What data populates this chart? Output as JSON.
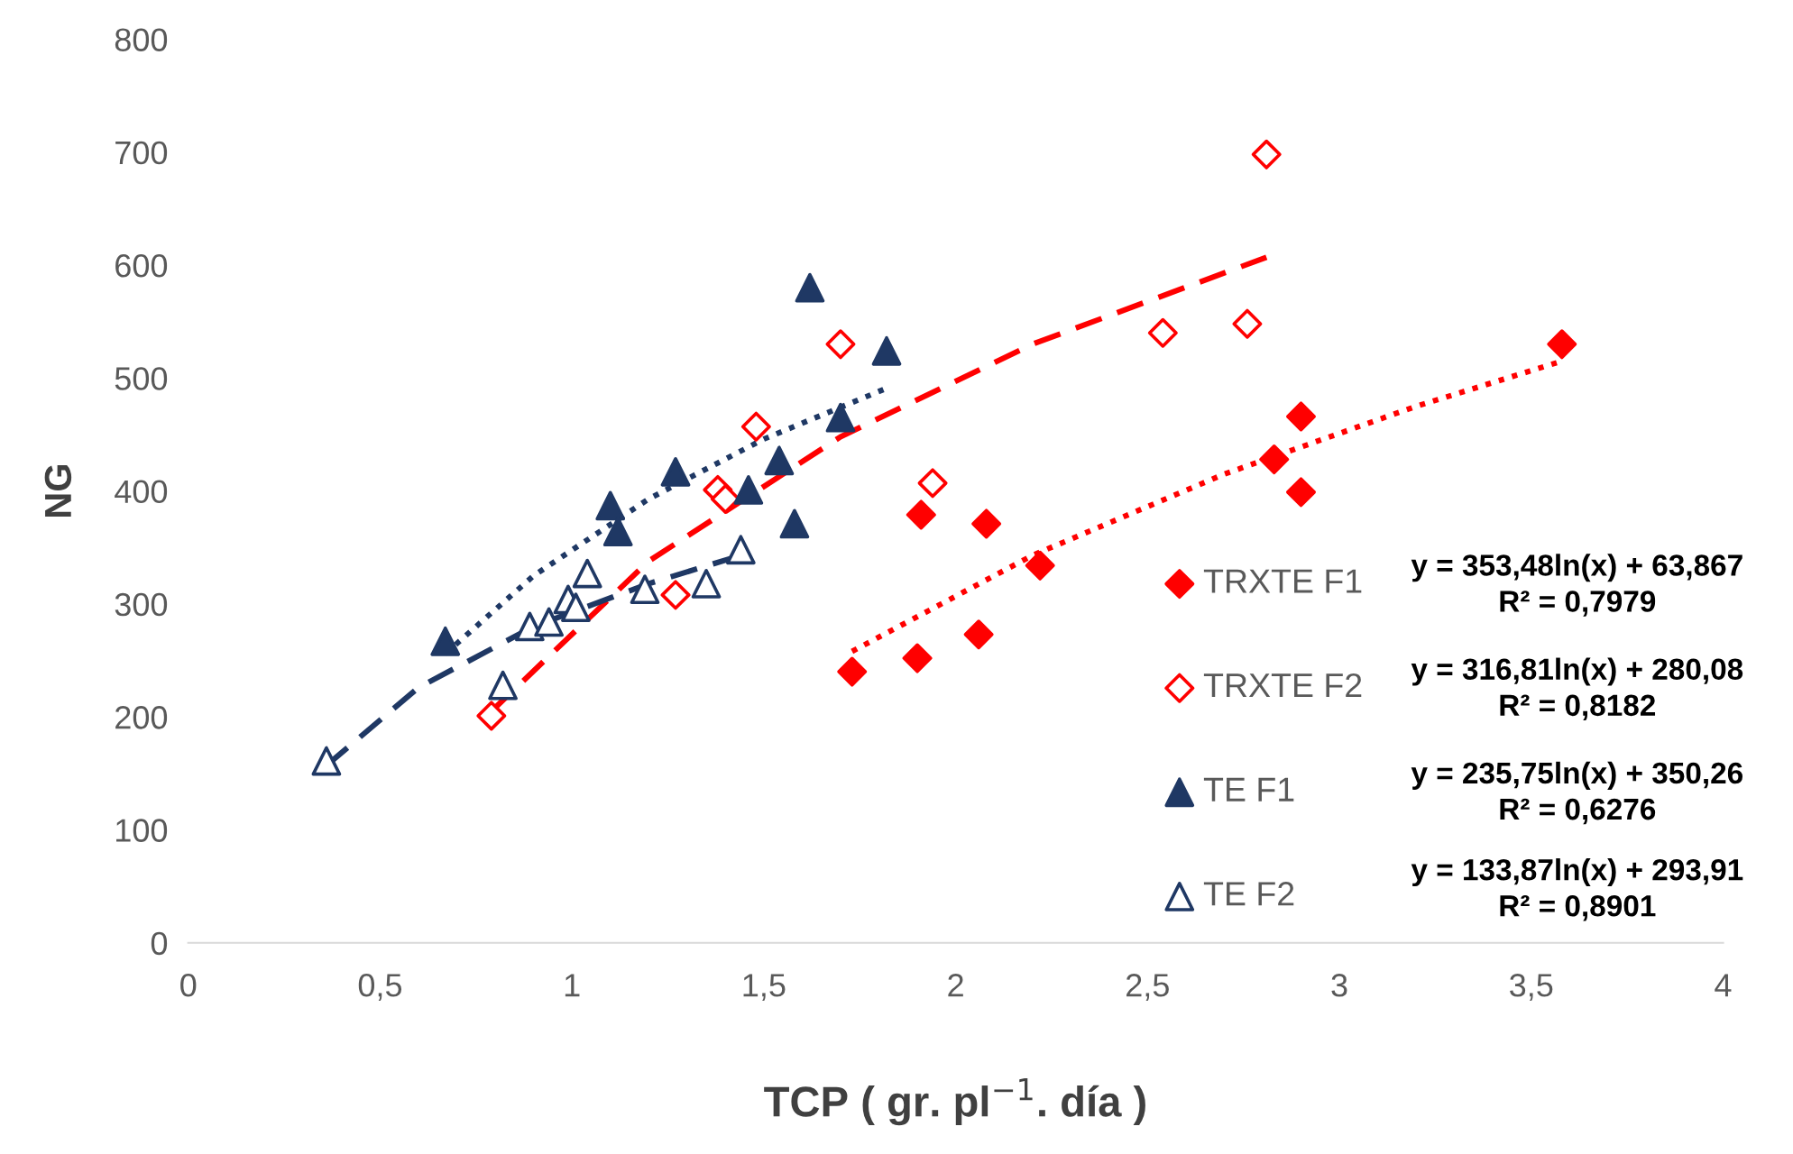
{
  "chart_data": {
    "type": "scatter",
    "xlabel": "TCP ( gr. pl$^{−1}$. día )",
    "ylabel": "NG",
    "xlim": [
      0,
      4
    ],
    "ylim": [
      0,
      800
    ],
    "xticks": [
      0,
      {
        "value": 0.5,
        "label": "0,5"
      },
      1,
      {
        "value": 1.5,
        "label": "1,5"
      },
      2,
      {
        "value": 2.5,
        "label": "2,5"
      },
      3,
      {
        "value": 3.5,
        "label": "3,5"
      },
      4
    ],
    "yticks": [
      0,
      100,
      200,
      300,
      400,
      500,
      600,
      700,
      800
    ],
    "grid": false,
    "legend": "right",
    "series": [
      {
        "name": "TRXTE F1",
        "marker": "diamond",
        "color": "#ff0000",
        "x": [
          1.73,
          1.9,
          2.06,
          1.91,
          2.08,
          2.22,
          2.83,
          2.9,
          2.9,
          3.58
        ],
        "values": [
          240,
          252,
          273,
          379,
          371,
          334,
          428,
          466,
          399,
          530
        ]
      },
      {
        "name": "TRXTE F2",
        "marker": "diamond",
        "color": "#ff0000",
        "x": [
          0.79,
          1.27,
          1.38,
          1.4,
          1.48,
          1.7,
          1.94,
          2.54,
          2.76,
          2.81
        ],
        "values": [
          201,
          308,
          401,
          393,
          457,
          530,
          407,
          540,
          548,
          698
        ]
      },
      {
        "name": "TE F1",
        "marker": "triangle",
        "color": "#1f3864",
        "x": [
          0.67,
          1.1,
          1.12,
          1.27,
          1.46,
          1.54,
          1.58,
          1.62,
          1.82,
          1.7
        ],
        "values": [
          267,
          387,
          364,
          417,
          401,
          427,
          371,
          580,
          524,
          465
        ]
      },
      {
        "name": "TE F2",
        "marker": "triangle",
        "color": "#1f3864",
        "x": [
          0.36,
          0.82,
          0.89,
          0.94,
          0.99,
          1.01,
          1.04,
          1.19,
          1.35,
          1.44
        ],
        "values": [
          161,
          228,
          280,
          284,
          304,
          297,
          327,
          313,
          318,
          348
        ]
      },
      {
        "type": "line",
        "line_style": "dotted",
        "color": "#ff0000",
        "x": [
          1.73,
          2.2,
          2.7,
          3.2,
          3.58
        ],
        "values": [
          258,
          343,
          415,
          475,
          515
        ]
      },
      {
        "type": "line",
        "line_style": "dashed",
        "color": "#ff0000",
        "x": [
          0.79,
          1.2,
          1.7,
          2.2,
          2.81
        ],
        "values": [
          205,
          338,
          448,
          530,
          607
        ]
      },
      {
        "type": "line",
        "line_style": "dotted",
        "color": "#1f3864",
        "x": [
          0.67,
          0.9,
          1.2,
          1.5,
          1.82
        ],
        "values": [
          256,
          325,
          393,
          446,
          491
        ]
      },
      {
        "type": "line",
        "line_style": "dashed",
        "color": "#1f3864",
        "x": [
          0.36,
          0.6,
          0.9,
          1.2,
          1.44
        ],
        "values": [
          157,
          226,
          280,
          318,
          343
        ]
      }
    ],
    "annotations": [
      "y = 353,48ln(x) + 63,867",
      "R² = 0,7979",
      "y = 316,81ln(x) + 280,08",
      "R² = 0,8182",
      "y = 235,75ln(x) + 350,26",
      "R² = 0,6276",
      "y = 133,87ln(x) + 293,91",
      "R² = 0,8901"
    ]
  }
}
